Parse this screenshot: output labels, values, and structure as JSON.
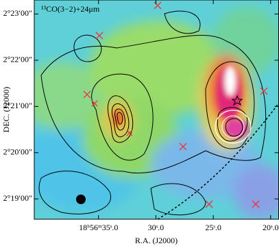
{
  "chart_data": {
    "type": "image",
    "annotation": "¹³CO(3−2)+24μm",
    "xlabel": "R.A. (J2000)",
    "ylabel": "DEC. (J2000)",
    "xlim": [
      40.6,
      19.3
    ],
    "xticks": [
      {
        "value": 35,
        "label": "18ʰ56ᵐ35ˢ.0"
      },
      {
        "value": 30,
        "label": "30ˢ.0"
      },
      {
        "value": 25,
        "label": "25ˢ.0"
      },
      {
        "value": 20,
        "label": "20ˢ.0"
      }
    ],
    "ylim": [
      2.30934,
      2.38838
    ],
    "yticks": [
      {
        "value": 2.316667,
        "label": "2°19′00″"
      },
      {
        "value": 2.333333,
        "label": "2°20′00″"
      },
      {
        "value": 2.35,
        "label": "2°21′00″"
      },
      {
        "value": 2.366667,
        "label": "2°22′00″"
      },
      {
        "value": 2.383333,
        "label": "2°23′00″"
      }
    ]
  }
}
